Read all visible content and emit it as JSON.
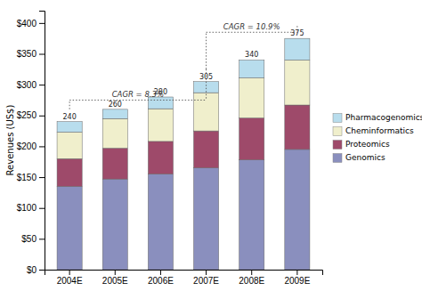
{
  "chart_data": {
    "type": "bar",
    "stacked": true,
    "categories": [
      "2004E",
      "2005E",
      "2006E",
      "2007E",
      "2008E",
      "2009E"
    ],
    "series": [
      {
        "name": "Genomics",
        "color": "#8a8fbe",
        "values": [
          135,
          147,
          155,
          165,
          178,
          195
        ]
      },
      {
        "name": "Proteomics",
        "color": "#9e4a6a",
        "values": [
          45,
          50,
          53,
          60,
          68,
          72
        ]
      },
      {
        "name": "Cheminformatics",
        "color": "#f0efcc",
        "values": [
          43,
          48,
          53,
          62,
          65,
          73
        ]
      },
      {
        "name": "Pharmacogenomics",
        "color": "#b8dded",
        "values": [
          17,
          15,
          19,
          18,
          29,
          35
        ]
      }
    ],
    "totals": [
      240,
      260,
      280,
      305,
      340,
      375
    ],
    "ylabel": "Revenues (US$)",
    "ylim": [
      0,
      420
    ],
    "yticks": [
      {
        "value": 0,
        "label": "$0"
      },
      {
        "value": 50,
        "label": "$50"
      },
      {
        "value": 100,
        "label": "$100"
      },
      {
        "value": 150,
        "label": "$150"
      },
      {
        "value": 200,
        "label": "$200"
      },
      {
        "value": 250,
        "label": "$250"
      },
      {
        "value": 300,
        "label": "$300"
      },
      {
        "value": 350,
        "label": "$350"
      },
      {
        "value": 400,
        "label": "$400"
      }
    ],
    "annotations": [
      {
        "text": "CAGR = 8.3%",
        "from": "2004E",
        "to": "2007E",
        "y": 275
      },
      {
        "text": "CAGR = 10.9%",
        "from": "2007E",
        "to": "2009E",
        "y": 385
      }
    ],
    "legend": "right",
    "grid": false
  }
}
